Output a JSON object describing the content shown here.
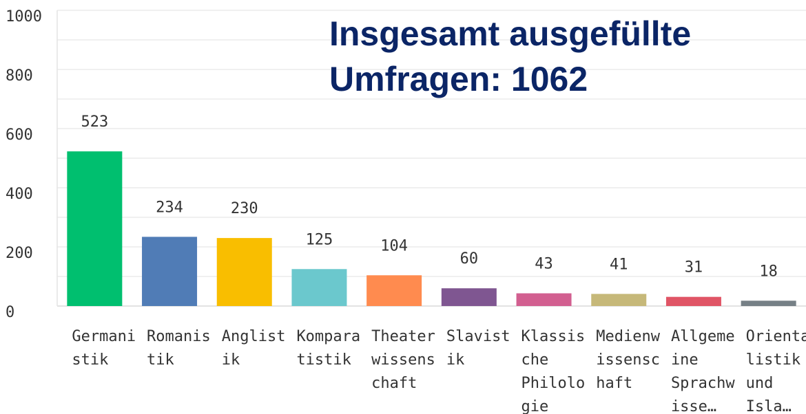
{
  "chart_data": {
    "type": "bar",
    "annotation": "Insgesamt ausgefüllte Umfragen: 1062",
    "categories": [
      [
        "Germani",
        "stik"
      ],
      [
        "Romanis",
        "tik"
      ],
      [
        "Anglist",
        "ik"
      ],
      [
        "Kompara",
        "tistik"
      ],
      [
        "Theater",
        "wissens",
        "chaft"
      ],
      [
        "Slavist",
        "ik"
      ],
      [
        "Klassis",
        "che",
        "Philolo",
        "gie"
      ],
      [
        "Medienw",
        "issensc",
        "haft"
      ],
      [
        "Allgeme",
        "ine",
        "Sprachw",
        "isse…"
      ],
      [
        "Orienta",
        "listik",
        "und",
        "Isla…"
      ]
    ],
    "values": [
      523,
      234,
      230,
      125,
      104,
      60,
      43,
      41,
      31,
      18
    ],
    "colors": [
      "#00bf6f",
      "#507cb6",
      "#f9be00",
      "#6bc8cd",
      "#ff8b4f",
      "#7f5691",
      "#d25f90",
      "#c6b879",
      "#e05566",
      "#768086"
    ],
    "ylim": [
      0,
      1000
    ],
    "yticks": [
      0,
      200,
      400,
      600,
      800,
      1000
    ],
    "minor_yticks": [
      100,
      300,
      500,
      700,
      900
    ],
    "grid": true
  }
}
